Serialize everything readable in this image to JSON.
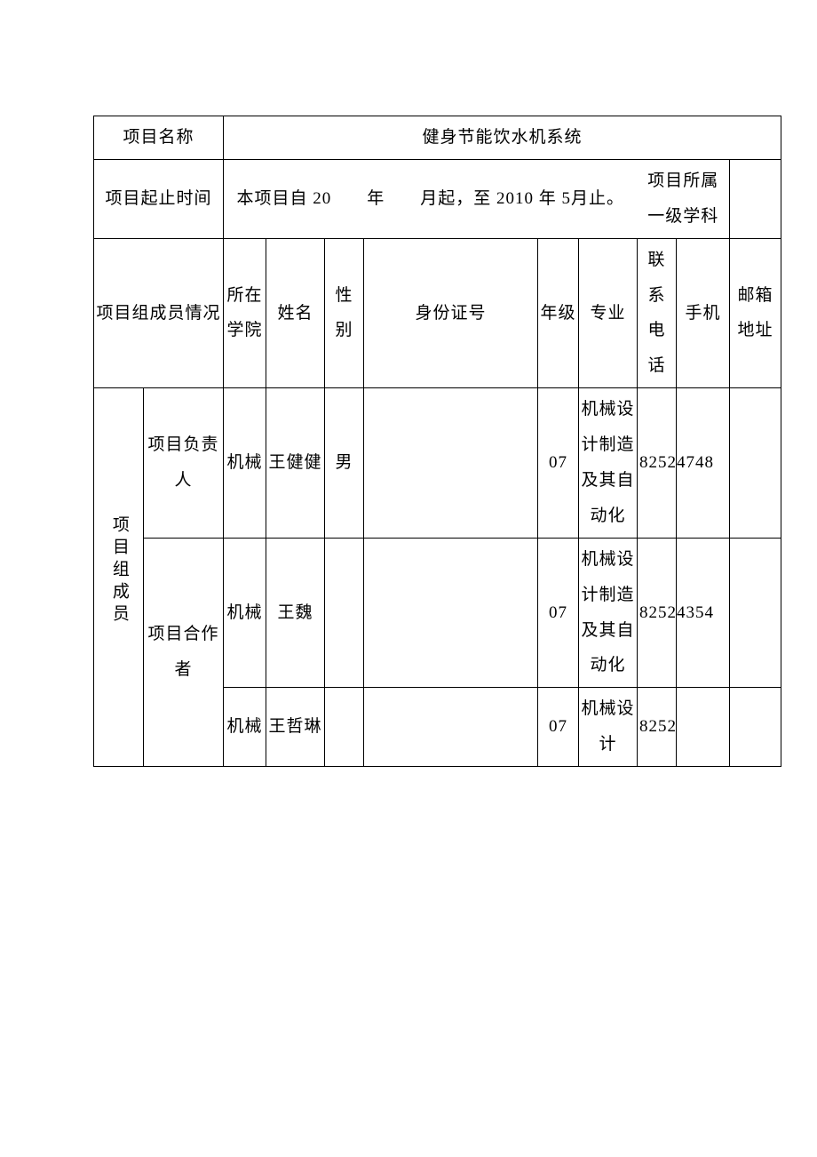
{
  "labels": {
    "projectName": "项目名称",
    "projectPeriod": "项目起止时间",
    "membersInfo": "项目组成员情况",
    "disciplineLabel": "项目所属一级学科",
    "membersGroup": "项目组成员",
    "leader": "项目负责人",
    "collaborator": "项目合作者"
  },
  "headers": {
    "institute": "所在学院",
    "name": "姓名",
    "gender": "性别",
    "idNumber": "身份证号",
    "grade": "年级",
    "major": "专业",
    "tel": "联系电话",
    "mobile": "手机",
    "email": "邮箱地址"
  },
  "values": {
    "projectTitle": "健身节能饮水机系统",
    "periodText": "本项目自 20　　年　　月起，至 2010 年 5月止。",
    "disciplineValue": ""
  },
  "rows": {
    "r1": {
      "institute": "机械",
      "name": "王健健",
      "gender": "男",
      "id": "",
      "grade": "07",
      "major": "机械设计制造及其自动化",
      "tel": "82524748",
      "mobile": "",
      "email": ""
    },
    "r2": {
      "institute": "机械",
      "name": "王魏",
      "gender": "",
      "id": "",
      "grade": "07",
      "major": "机械设计制造及其自动化",
      "tel": "82524354",
      "mobile": "",
      "email": ""
    },
    "r3": {
      "institute": "机械",
      "name": "王哲琳",
      "gender": "",
      "id": "",
      "grade": "07",
      "major": "机械设计",
      "tel": "8252",
      "mobile": "",
      "email": ""
    }
  },
  "style": {
    "borderColor": "#000000",
    "background": "#ffffff",
    "fontSize": 19,
    "lineHeight": 2.1
  }
}
